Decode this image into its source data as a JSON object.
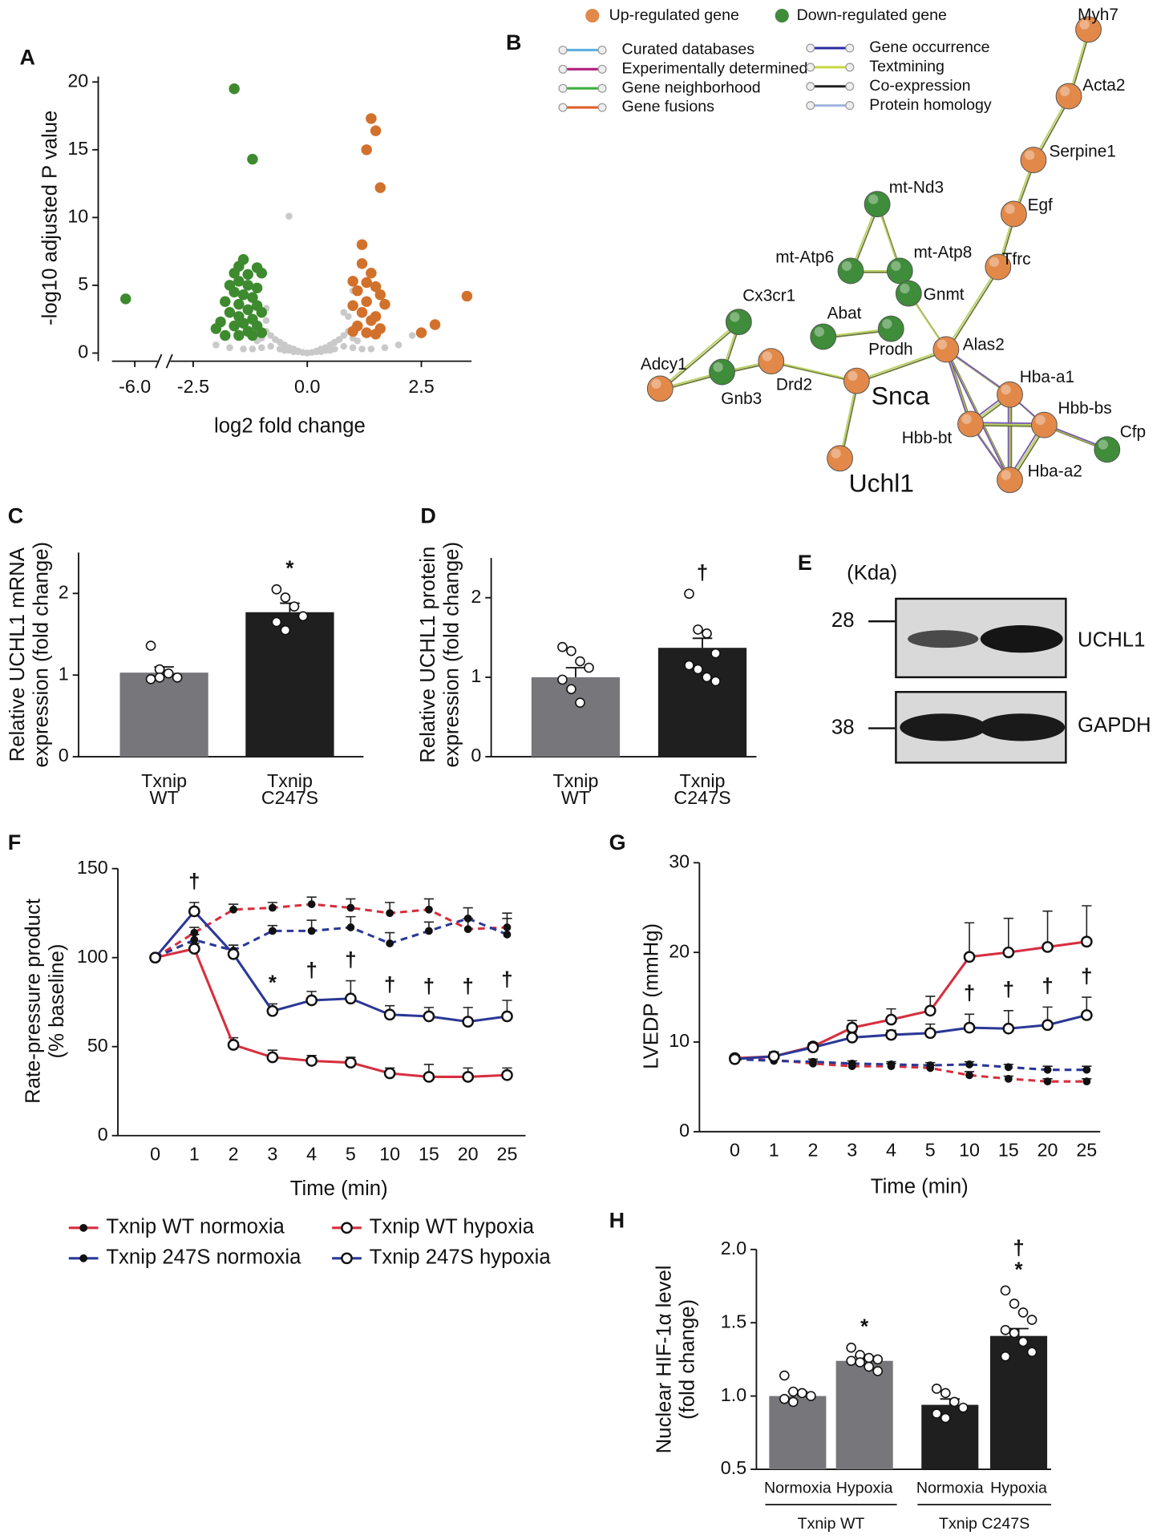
{
  "chart_data": [
    {
      "type": "scatter",
      "panel": "A",
      "ylabel": "-log10 adjusted P value",
      "xlabel": "log2 fold change",
      "xlim": [
        -6.5,
        3.6
      ],
      "xbreak": [
        -5.5,
        -3.0
      ],
      "ylim": [
        -0.6,
        20.4
      ],
      "yticks": [
        0,
        5,
        10,
        15,
        20
      ],
      "xticks": [
        {
          "value": -6,
          "label": "-6.0"
        },
        {
          "value": -2.5,
          "label": "-2.5"
        },
        {
          "value": 0,
          "label": "0.0"
        },
        {
          "value": 2.5,
          "label": "2.5"
        }
      ],
      "series": [
        {
          "color": "#c9c9c9",
          "x": [
            -0.9,
            -0.8,
            -0.7,
            -0.6,
            -0.5,
            -0.4,
            -0.3,
            -0.2,
            -0.1,
            0.0,
            0.1,
            0.2,
            0.3,
            0.4,
            0.5,
            0.6,
            0.7,
            0.8,
            0.9,
            -0.8,
            -0.6,
            -0.4,
            -0.2,
            0.2,
            0.4,
            0.6,
            0.8,
            -1.0,
            -1.2,
            -1.4,
            1.0,
            1.2,
            1.4,
            1.7,
            2.0,
            -1.7,
            -2.0,
            -0.9,
            0.9,
            -0.9,
            0.8,
            1.0,
            -0.5,
            0.5,
            -1.1,
            1.1,
            -0.3,
            0.3,
            -0.4,
            2.3,
            -1.0,
            1.0
          ],
          "values": [
            1.6,
            1.3,
            1.0,
            0.8,
            0.6,
            0.4,
            0.3,
            0.15,
            0.05,
            0.0,
            0.05,
            0.15,
            0.3,
            0.4,
            0.6,
            0.8,
            1.0,
            1.3,
            1.6,
            0.5,
            0.3,
            0.2,
            0.1,
            0.1,
            0.2,
            0.3,
            0.5,
            0.4,
            0.3,
            0.3,
            0.4,
            0.3,
            0.3,
            0.4,
            0.6,
            0.4,
            0.6,
            2.4,
            2.7,
            3.3,
            3.0,
            4.6,
            0.2,
            0.2,
            0.9,
            0.9,
            0.1,
            0.1,
            10.1,
            1.3,
            1.1,
            1.1
          ]
        },
        {
          "color": "#3e8a2f",
          "x": [
            -6.2,
            -1.6,
            -1.2,
            -1.4,
            -1.5,
            -1.1,
            -1.6,
            -1.3,
            -1.0,
            -1.5,
            -1.7,
            -1.3,
            -1.1,
            -1.6,
            -1.4,
            -1.2,
            -1.8,
            -1.5,
            -1.1,
            -1.3,
            -1.7,
            -1.0,
            -1.5,
            -1.2,
            -1.9,
            -1.4,
            -1.6,
            -1.1,
            -2.0,
            -1.3,
            -1.8,
            -1.5,
            -1.2,
            -1.0
          ],
          "values": [
            4.0,
            19.5,
            14.3,
            6.9,
            6.4,
            6.3,
            5.9,
            5.8,
            5.9,
            5.3,
            5.0,
            5.0,
            4.8,
            4.5,
            4.3,
            4.1,
            3.8,
            3.6,
            3.5,
            3.2,
            3.0,
            3.0,
            2.7,
            2.5,
            2.3,
            2.2,
            2.0,
            2.0,
            1.8,
            1.6,
            1.3,
            1.3,
            1.3,
            1.5
          ]
        },
        {
          "color": "#d2712c",
          "x": [
            1.4,
            1.5,
            1.3,
            1.6,
            1.2,
            1.2,
            1.4,
            1.0,
            1.3,
            1.5,
            1.1,
            1.6,
            1.3,
            1.0,
            1.7,
            1.2,
            1.5,
            1.4,
            1.1,
            1.6,
            1.3,
            1.0,
            1.5,
            2.8,
            2.5,
            3.5
          ],
          "values": [
            17.3,
            16.4,
            15.0,
            12.2,
            8.0,
            6.6,
            5.9,
            5.3,
            5.2,
            4.9,
            4.6,
            4.3,
            3.8,
            3.5,
            3.6,
            3.0,
            2.7,
            2.4,
            2.0,
            1.8,
            1.5,
            1.6,
            1.4,
            2.1,
            1.5,
            4.2
          ]
        }
      ]
    },
    {
      "type": "bar",
      "panel": "C",
      "ylabel": [
        "Relative UCHL1 mRNA",
        "expression (fold change)"
      ],
      "categories": [
        [
          "Txnip",
          "WT"
        ],
        [
          "Txnip",
          "C247S"
        ]
      ],
      "values": [
        1.03,
        1.77
      ],
      "errors": [
        0.07,
        0.11
      ],
      "colors": [
        "#77777b",
        "#1f1f1f"
      ],
      "points": [
        [
          1.36,
          1.07,
          1.02,
          0.97,
          0.95,
          0.97
        ],
        [
          2.05,
          1.95,
          1.84,
          1.72,
          1.65,
          1.55
        ]
      ],
      "significance": [
        null,
        [
          "*"
        ]
      ],
      "ylim": [
        0,
        2.5
      ],
      "yticks": [
        0,
        1,
        2
      ]
    },
    {
      "type": "bar",
      "panel": "D",
      "ylabel": [
        "Relative UCHL1 protein",
        "expression (fold change)"
      ],
      "categories": [
        [
          "Txnip",
          "WT"
        ],
        [
          "Txnip",
          "C247S"
        ]
      ],
      "values": [
        1.0,
        1.37
      ],
      "errors": [
        0.12,
        0.12
      ],
      "colors": [
        "#77777b",
        "#1f1f1f"
      ],
      "points": [
        [
          1.38,
          1.33,
          1.2,
          1.12,
          0.97,
          0.85,
          0.68
        ],
        [
          2.05,
          1.6,
          1.55,
          1.3,
          1.15,
          1.1,
          1.0,
          0.95
        ]
      ],
      "significance": [
        null,
        [
          "†"
        ]
      ],
      "ylim": [
        0,
        2.5
      ],
      "yticks": [
        0,
        1,
        2
      ]
    },
    {
      "type": "line",
      "panel": "F",
      "ylabel": [
        "Rate-pressure product",
        "(% baseline)"
      ],
      "xlabel": "Time (min)",
      "categories": [
        "0",
        "1",
        "2",
        "3",
        "4",
        "5",
        "10",
        "15",
        "20",
        "25"
      ],
      "ylim": [
        0,
        150
      ],
      "yticks": [
        0,
        50,
        100,
        150
      ],
      "annotations": [
        null,
        "†",
        null,
        "*",
        "†",
        "†",
        "†",
        "†",
        "†",
        "†"
      ],
      "series": [
        {
          "name": "Txnip WT normoxia",
          "color": "#d62f3f",
          "dashed": true,
          "marker": "filled",
          "values": [
            100,
            114,
            127,
            128,
            130,
            128,
            125,
            127,
            116,
            117
          ],
          "errors": [
            0,
            3,
            3,
            3,
            4,
            5,
            6,
            6,
            6,
            8
          ]
        },
        {
          "name": "Txnip WT hypoxia",
          "color": "#d62f3f",
          "dashed": false,
          "marker": "open",
          "values": [
            100,
            105,
            51,
            44,
            42,
            41,
            35,
            33,
            33,
            34
          ],
          "errors": [
            0,
            3,
            4,
            4,
            3,
            3,
            3,
            7,
            5,
            4
          ]
        },
        {
          "name": "Txnip 247S normoxia",
          "color": "#2b3896",
          "dashed": true,
          "marker": "filled",
          "values": [
            100,
            110,
            104,
            115,
            115,
            117,
            108,
            115,
            122,
            113
          ],
          "errors": [
            0,
            3,
            3,
            3,
            6,
            6,
            6,
            5,
            6,
            9
          ]
        },
        {
          "name": "Txnip 247S hypoxia",
          "color": "#2b3896",
          "dashed": false,
          "marker": "open",
          "values": [
            100,
            126,
            102,
            70,
            76,
            77,
            68,
            67,
            64,
            67
          ],
          "errors": [
            0,
            5,
            5,
            4,
            5,
            10,
            5,
            5,
            8,
            9
          ]
        }
      ]
    },
    {
      "type": "line",
      "panel": "G",
      "ylabel": "LVEDP (mmHg)",
      "xlabel": "Time (min)",
      "categories": [
        "0",
        "1",
        "2",
        "3",
        "4",
        "5",
        "10",
        "15",
        "20",
        "25"
      ],
      "ylim": [
        0,
        30
      ],
      "yticks": [
        0,
        10,
        20,
        30
      ],
      "annotations": [
        null,
        null,
        null,
        null,
        null,
        null,
        "†",
        "†",
        "†",
        "†"
      ],
      "series": [
        {
          "color": "#d62f3f",
          "dashed": true,
          "marker": "filled",
          "values": [
            8.1,
            8.0,
            7.6,
            7.3,
            7.3,
            7.1,
            6.3,
            5.9,
            5.6,
            5.6
          ],
          "errors": [
            0.2,
            0.2,
            0.3,
            0.3,
            0.3,
            0.3,
            0.4,
            0.3,
            0.3,
            0.3
          ]
        },
        {
          "color": "#d62f3f",
          "dashed": false,
          "marker": "open",
          "values": [
            8.2,
            8.4,
            9.5,
            11.6,
            12.5,
            13.5,
            19.5,
            20.0,
            20.6,
            21.2
          ],
          "errors": [
            0.3,
            0.4,
            0.4,
            0.8,
            1.2,
            1.6,
            3.8,
            3.8,
            4.0,
            4.0
          ]
        },
        {
          "color": "#2b3896",
          "dashed": true,
          "marker": "filled",
          "values": [
            8.1,
            7.9,
            7.8,
            7.6,
            7.5,
            7.4,
            7.5,
            7.2,
            6.9,
            6.9
          ],
          "errors": [
            0.2,
            0.2,
            0.3,
            0.3,
            0.3,
            0.3,
            0.3,
            0.3,
            0.4,
            0.4
          ]
        },
        {
          "color": "#2b3896",
          "dashed": false,
          "marker": "open",
          "values": [
            8.1,
            8.4,
            9.4,
            10.5,
            10.8,
            11.0,
            11.6,
            11.5,
            11.9,
            13.0
          ],
          "errors": [
            0.3,
            0.5,
            0.3,
            0.6,
            0.5,
            1.0,
            1.5,
            2.0,
            2.0,
            2.0
          ]
        }
      ]
    },
    {
      "type": "bar",
      "panel": "H",
      "ylabel": [
        "Nuclear HIF-1α level",
        "(fold change)"
      ],
      "categories": [
        "Normoxia",
        "Hypoxia",
        "Normoxia",
        "Hypoxia"
      ],
      "groups": [
        "Txnip WT",
        "Txnip C247S"
      ],
      "values": [
        1.0,
        1.24,
        0.94,
        1.41
      ],
      "errors": [
        0.03,
        0.03,
        0.04,
        0.05
      ],
      "colors": [
        "#77777b",
        "#77777b",
        "#1f1f1f",
        "#1f1f1f"
      ],
      "points": [
        [
          1.14,
          1.03,
          1.02,
          1.0,
          0.98,
          0.96
        ],
        [
          1.33,
          1.28,
          1.26,
          1.25,
          1.24,
          1.23,
          1.2,
          1.17
        ],
        [
          1.05,
          1.02,
          0.96,
          0.92,
          0.88,
          0.85
        ],
        [
          1.72,
          1.63,
          1.57,
          1.52,
          1.45,
          1.43,
          1.37,
          1.3,
          1.27
        ]
      ],
      "significance": [
        null,
        [
          "*"
        ],
        null,
        [
          "†",
          "*"
        ]
      ],
      "ylim": [
        0.5,
        2.0
      ],
      "yticks": [
        {
          "value": 0.5,
          "label": "0.5"
        },
        {
          "value": 1.0,
          "label": "1.0"
        },
        {
          "value": 1.5,
          "label": "1.5"
        },
        {
          "value": 2.0,
          "label": "2.0"
        }
      ]
    }
  ],
  "network": {
    "panel": "B",
    "legend": {
      "nodes": [
        {
          "label": "Up-regulated gene",
          "color": "#e2894a"
        },
        {
          "label": "Down-regulated gene",
          "color": "#3f8c3a"
        }
      ],
      "edges": [
        {
          "label": "Curated databases",
          "color": "#5fb0e0"
        },
        {
          "label": "Experimentally determined",
          "color": "#b0207e"
        },
        {
          "label": "Gene neighborhood",
          "color": "#3fae3f"
        },
        {
          "label": "Gene fusions",
          "color": "#e0602a"
        },
        {
          "label": "Gene occurrence",
          "color": "#2a2aa0"
        },
        {
          "label": "Textmining",
          "color": "#c8d840"
        },
        {
          "label": "Co-expression",
          "color": "#222222"
        },
        {
          "label": "Protein homology",
          "color": "#9fb6e0"
        }
      ]
    },
    "nodes": [
      {
        "label": "Myh7",
        "color": "#e2894a"
      },
      {
        "label": "Acta2",
        "color": "#e2894a"
      },
      {
        "label": "Serpine1",
        "color": "#e2894a"
      },
      {
        "label": "Egf",
        "color": "#e2894a"
      },
      {
        "label": "Tfrc",
        "color": "#e2894a"
      },
      {
        "label": "mt-Nd3",
        "color": "#3f8c3a"
      },
      {
        "label": "mt-Atp6",
        "color": "#3f8c3a"
      },
      {
        "label": "mt-Atp8",
        "color": "#3f8c3a"
      },
      {
        "label": "Gnmt",
        "color": "#3f8c3a"
      },
      {
        "label": "Cx3cr1",
        "color": "#3f8c3a"
      },
      {
        "label": "Abat",
        "color": "#3f8c3a"
      },
      {
        "label": "Prodh",
        "color": "#3f8c3a"
      },
      {
        "label": "Alas2",
        "color": "#e2894a"
      },
      {
        "label": "Adcy1",
        "color": "#e2894a"
      },
      {
        "label": "Gnb3",
        "color": "#3f8c3a"
      },
      {
        "label": "Drd2",
        "color": "#e2894a"
      },
      {
        "label": "Snca",
        "color": "#e2894a"
      },
      {
        "label": "Uchl1",
        "color": "#e2894a"
      },
      {
        "label": "Hba-a1",
        "color": "#e2894a"
      },
      {
        "label": "Hbb-bs",
        "color": "#e2894a"
      },
      {
        "label": "Hbb-bt",
        "color": "#e2894a"
      },
      {
        "label": "Cfp",
        "color": "#3f8c3a"
      },
      {
        "label": "Hba-a2",
        "color": "#e2894a"
      }
    ]
  },
  "blot": {
    "panel": "E",
    "unit": "(Kda)",
    "rows": [
      {
        "marker": 28,
        "label": "UCHL1"
      },
      {
        "marker": 38,
        "label": "GAPDH"
      }
    ]
  }
}
